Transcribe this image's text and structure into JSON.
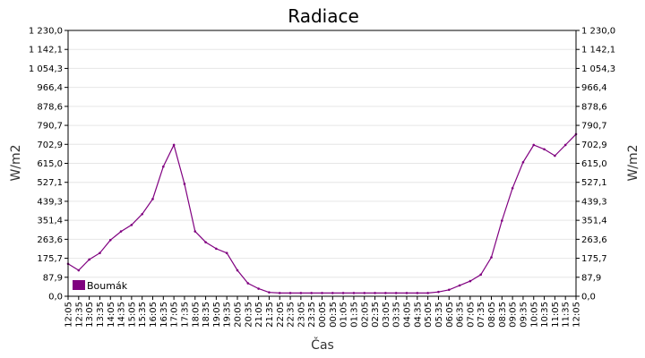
{
  "chart_data": {
    "type": "line",
    "title": "Radiace",
    "xlabel": "Čas",
    "ylabel": "W/m2",
    "ylabel_right": "W/m2",
    "ylim": [
      0,
      1230
    ],
    "yticks": [
      "0,0",
      "87,9",
      "175,7",
      "263,6",
      "351,4",
      "439,3",
      "527,1",
      "615,0",
      "702,9",
      "790,7",
      "878,6",
      "966,4",
      "1 054,3",
      "1 142,1",
      "1 230,0"
    ],
    "categories": [
      "12:05",
      "12:35",
      "13:05",
      "13:35",
      "14:05",
      "14:35",
      "15:05",
      "15:35",
      "16:05",
      "16:35",
      "17:05",
      "17:35",
      "18:05",
      "18:35",
      "19:05",
      "19:35",
      "20:05",
      "20:35",
      "21:05",
      "21:35",
      "22:05",
      "22:35",
      "23:05",
      "23:35",
      "00:05",
      "00:35",
      "01:05",
      "01:35",
      "02:05",
      "02:35",
      "03:05",
      "03:35",
      "04:05",
      "04:35",
      "05:05",
      "05:35",
      "06:05",
      "06:35",
      "07:05",
      "07:35",
      "08:05",
      "08:35",
      "09:05",
      "09:35",
      "10:05",
      "10:35",
      "11:05",
      "11:35",
      "12:05"
    ],
    "grid": true,
    "legend_position": "bottom-left",
    "series": [
      {
        "name": "Boumák",
        "color": "#800080",
        "values": [
          150,
          120,
          170,
          200,
          260,
          300,
          330,
          380,
          450,
          600,
          700,
          520,
          300,
          250,
          220,
          200,
          120,
          60,
          35,
          18,
          15,
          15,
          15,
          15,
          15,
          15,
          15,
          15,
          15,
          15,
          15,
          15,
          15,
          15,
          15,
          20,
          30,
          50,
          70,
          100,
          180,
          350,
          500,
          620,
          700,
          680,
          650,
          700,
          750
        ]
      }
    ]
  }
}
